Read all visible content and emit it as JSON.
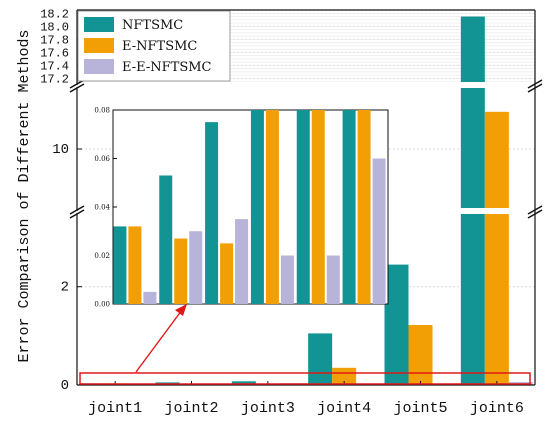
{
  "chart_data": {
    "type": "bar",
    "ylabel": "Error Comparison of Different Methods",
    "categories": [
      "joint1",
      "joint2",
      "joint3",
      "joint4",
      "joint5",
      "joint6"
    ],
    "series": [
      {
        "name": "NFTSMC",
        "color": "#139494",
        "values": [
          0.032,
          0.053,
          0.075,
          1.05,
          2.45,
          18.15
        ]
      },
      {
        "name": "E-NFTSMC",
        "color": "#f29e05",
        "values": [
          0.032,
          0.027,
          0.025,
          0.35,
          1.22,
          11.5
        ]
      },
      {
        "name": "E-E-NFTSMC",
        "color": "#b8b3d8",
        "values": [
          0.005,
          0.03,
          0.035,
          0.02,
          0.02,
          0.06
        ]
      }
    ],
    "y_segments": [
      {
        "range": [
          0,
          3.5
        ],
        "ticks": [
          "0",
          "2"
        ]
      },
      {
        "range": [
          7.5,
          12.5
        ],
        "ticks": [
          "10"
        ]
      },
      {
        "range": [
          17.1,
          18.25
        ],
        "ticks": [
          "17.2",
          "17.4",
          "17.6",
          "17.8",
          "18.0",
          "18.2"
        ]
      }
    ],
    "legend": "top-left",
    "grid": true,
    "inset": {
      "ylim": [
        0,
        0.08
      ],
      "ticks": [
        "0.00",
        "0.02",
        "0.04",
        "0.06",
        "0.08"
      ],
      "annotation": "zoom of highlighted region near y = 0"
    }
  }
}
